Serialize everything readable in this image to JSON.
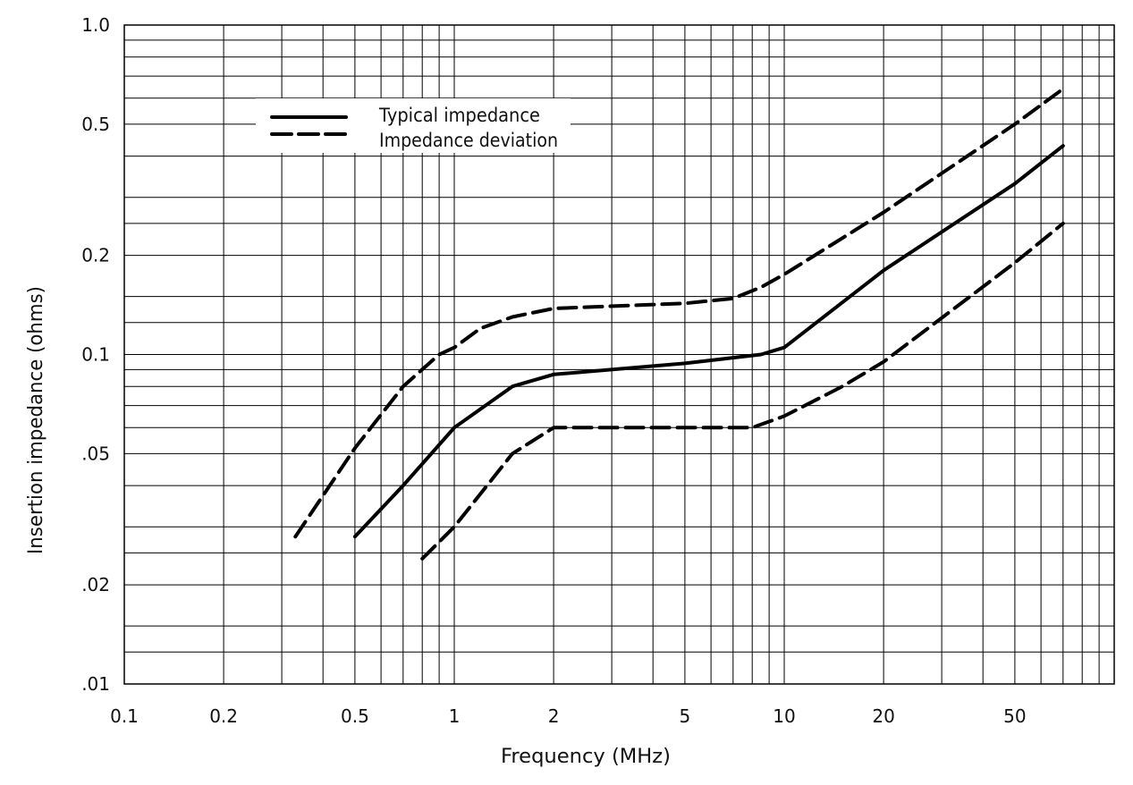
{
  "chart_data": {
    "type": "line",
    "title": "",
    "xlabel": "Frequency (MHz)",
    "ylabel": "Insertion impedance (ohms)",
    "xscale": "log",
    "yscale": "log",
    "xlim": [
      0.1,
      100
    ],
    "ylim": [
      0.01,
      1.0
    ],
    "grid": true,
    "x_tick_labels": [
      {
        "value": 0.1,
        "label": "0.1"
      },
      {
        "value": 0.2,
        "label": "0.2"
      },
      {
        "value": 0.5,
        "label": "0.5"
      },
      {
        "value": 1,
        "label": "1"
      },
      {
        "value": 2,
        "label": "2"
      },
      {
        "value": 5,
        "label": "5"
      },
      {
        "value": 10,
        "label": "10"
      },
      {
        "value": 20,
        "label": "20"
      },
      {
        "value": 50,
        "label": "50"
      }
    ],
    "y_tick_labels": [
      {
        "value": 1.0,
        "label": "1.0"
      },
      {
        "value": 0.5,
        "label": "0.5"
      },
      {
        "value": 0.2,
        "label": "0.2"
      },
      {
        "value": 0.1,
        "label": "0.1"
      },
      {
        "value": 0.05,
        "label": ".05"
      },
      {
        "value": 0.02,
        "label": ".02"
      },
      {
        "value": 0.01,
        "label": ".01"
      }
    ],
    "legend": {
      "position": "upper-left",
      "entries": [
        {
          "label": "Typical impedance",
          "style": "solid"
        },
        {
          "label": "Impedance deviation",
          "style": "dashed"
        }
      ]
    },
    "series": [
      {
        "name": "Impedance deviation (upper)",
        "style": "dashed",
        "x": [
          0.33,
          0.5,
          0.7,
          0.9,
          1.0,
          1.2,
          1.5,
          2,
          5,
          7,
          8.5,
          10,
          20,
          50,
          70
        ],
        "y": [
          0.028,
          0.052,
          0.08,
          0.1,
          0.105,
          0.12,
          0.13,
          0.138,
          0.143,
          0.148,
          0.16,
          0.175,
          0.27,
          0.5,
          0.64
        ]
      },
      {
        "name": "Typical impedance",
        "style": "solid",
        "x": [
          0.5,
          0.7,
          1.0,
          1.5,
          2,
          5,
          8.5,
          10,
          20,
          50,
          70
        ],
        "y": [
          0.028,
          0.04,
          0.06,
          0.08,
          0.087,
          0.094,
          0.1,
          0.105,
          0.18,
          0.33,
          0.43
        ]
      },
      {
        "name": "Impedance deviation (lower)",
        "style": "dashed",
        "x": [
          0.8,
          1.0,
          1.5,
          2,
          5,
          8,
          10,
          15,
          20,
          50,
          70
        ],
        "y": [
          0.024,
          0.03,
          0.05,
          0.06,
          0.06,
          0.06,
          0.065,
          0.08,
          0.095,
          0.19,
          0.25
        ]
      }
    ]
  }
}
